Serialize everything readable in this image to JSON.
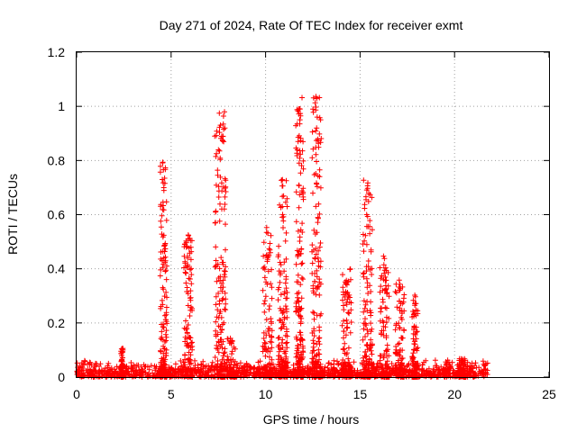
{
  "chart_data": {
    "type": "scatter",
    "title": "Day 271 of 2024, Rate Of TEC Index for receiver exmt",
    "xlabel": "GPS time / hours",
    "ylabel": "ROTI / TECUs",
    "xlim": [
      0,
      25
    ],
    "ylim": [
      0,
      1.2
    ],
    "xticks": [
      "0",
      "5",
      "10",
      "15",
      "20",
      "25"
    ],
    "yticks": [
      "0",
      "0.2",
      "0.4",
      "0.6",
      "0.8",
      "1",
      "1.2"
    ],
    "grid": true,
    "legend": "none",
    "marker": "+",
    "color": "#ff0000",
    "baseline": {
      "x_start": 0.0,
      "x_end": 21.75,
      "typical_max": 0.05
    },
    "bursts": [
      {
        "x": 4.6,
        "width": 0.35,
        "peak": 0.8
      },
      {
        "x": 5.9,
        "width": 0.45,
        "peak": 0.53
      },
      {
        "x": 7.6,
        "width": 0.6,
        "peak": 0.98
      },
      {
        "x": 8.2,
        "width": 0.5,
        "peak": 0.15
      },
      {
        "x": 10.1,
        "width": 0.5,
        "peak": 0.56
      },
      {
        "x": 10.9,
        "width": 0.5,
        "peak": 0.73
      },
      {
        "x": 11.8,
        "width": 0.4,
        "peak": 1.04
      },
      {
        "x": 12.7,
        "width": 0.5,
        "peak": 1.05
      },
      {
        "x": 14.3,
        "width": 0.5,
        "peak": 0.4
      },
      {
        "x": 15.4,
        "width": 0.5,
        "peak": 0.73
      },
      {
        "x": 16.3,
        "width": 0.5,
        "peak": 0.45
      },
      {
        "x": 17.1,
        "width": 0.5,
        "peak": 0.36
      },
      {
        "x": 17.9,
        "width": 0.3,
        "peak": 0.31
      },
      {
        "x": 2.4,
        "width": 0.1,
        "peak": 0.11
      },
      {
        "x": 20.4,
        "width": 0.4,
        "peak": 0.07
      }
    ]
  }
}
